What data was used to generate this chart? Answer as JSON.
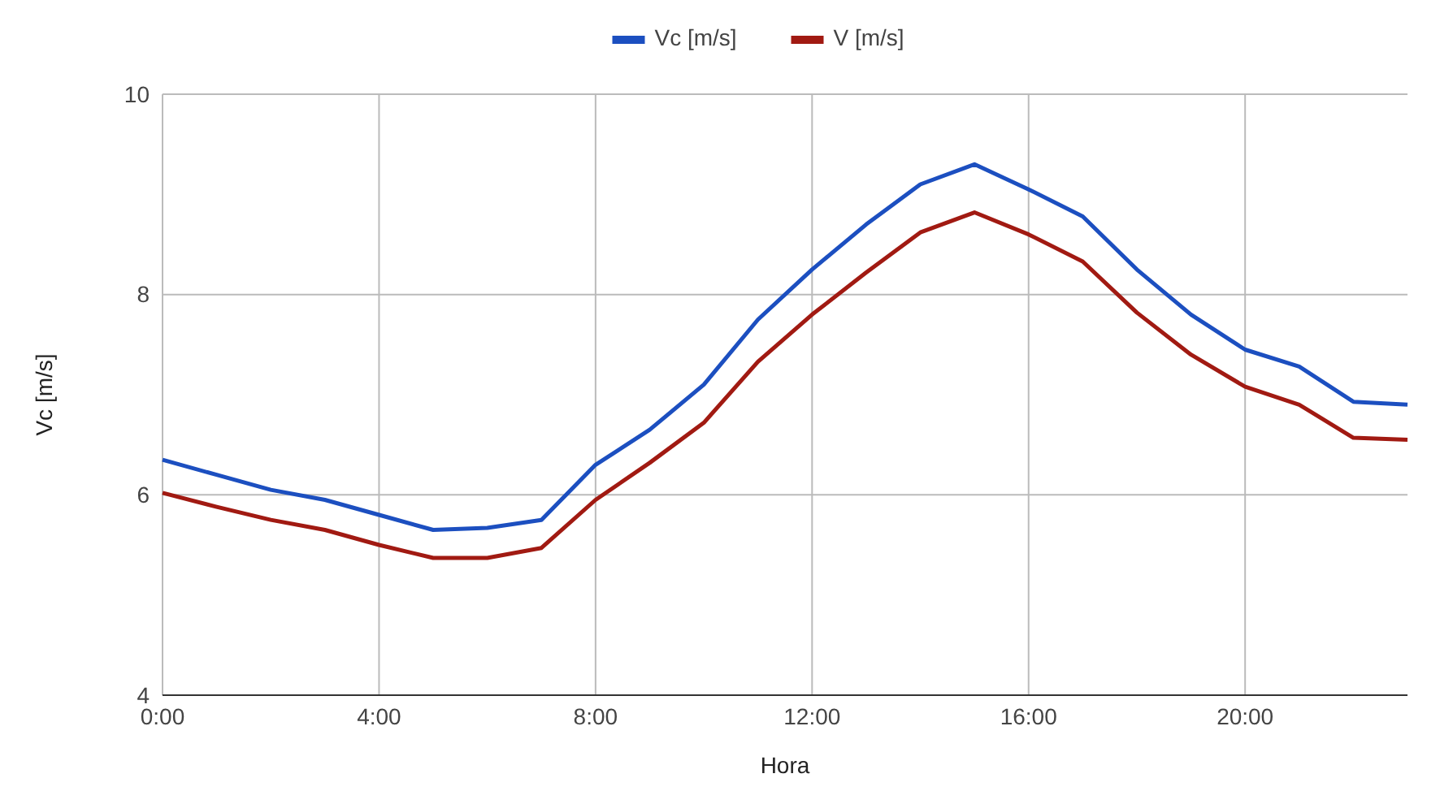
{
  "chart_data": {
    "type": "line",
    "xlabel": "Hora",
    "ylabel": "Vc [m/s]",
    "x": [
      0,
      1,
      2,
      3,
      4,
      5,
      6,
      7,
      8,
      9,
      10,
      11,
      12,
      13,
      14,
      15,
      16,
      17,
      18,
      19,
      20,
      21,
      22,
      23
    ],
    "series": [
      {
        "name": "Vc [m/s]",
        "color": "#1c4fc0",
        "values": [
          6.35,
          6.2,
          6.05,
          5.95,
          5.8,
          5.65,
          5.67,
          5.75,
          6.3,
          6.65,
          7.1,
          7.75,
          8.25,
          8.7,
          9.1,
          9.3,
          9.05,
          8.78,
          8.25,
          7.8,
          7.45,
          7.28,
          6.93,
          6.9
        ]
      },
      {
        "name": "V [m/s]",
        "color": "#a11a12",
        "values": [
          6.02,
          5.88,
          5.75,
          5.65,
          5.5,
          5.37,
          5.37,
          5.47,
          5.95,
          6.32,
          6.72,
          7.33,
          7.8,
          8.22,
          8.62,
          8.82,
          8.6,
          8.33,
          7.82,
          7.4,
          7.08,
          6.9,
          6.57,
          6.55
        ]
      }
    ],
    "xlim": [
      0,
      23
    ],
    "xticks": [
      {
        "value": 0,
        "label": "0:00"
      },
      {
        "value": 4,
        "label": "4:00"
      },
      {
        "value": 8,
        "label": "8:00"
      },
      {
        "value": 12,
        "label": "12:00"
      },
      {
        "value": 16,
        "label": "16:00"
      },
      {
        "value": 20,
        "label": "20:00"
      }
    ],
    "ylim": [
      4,
      10
    ],
    "yticks": [
      4,
      6,
      8,
      10
    ],
    "grid": true,
    "legend": "top",
    "line_style": "solid",
    "marker": "none"
  }
}
